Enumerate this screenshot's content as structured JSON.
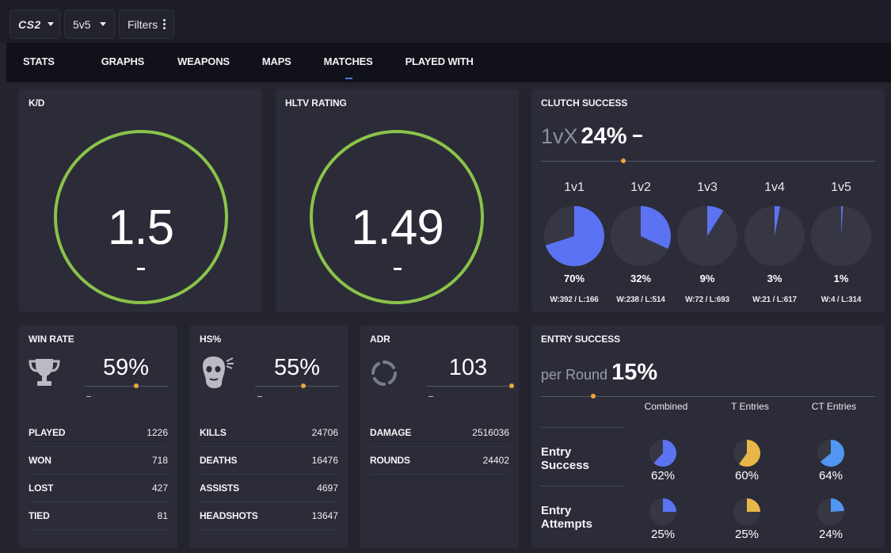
{
  "topbar": {
    "game_label": "CS2",
    "mode_label": "5v5",
    "filters_label": "Filters"
  },
  "tabs": [
    {
      "label": "STATS"
    },
    {
      "label": "GRAPHS"
    },
    {
      "label": "WEAPONS"
    },
    {
      "label": "MAPS"
    },
    {
      "label": "MATCHES",
      "active": true
    },
    {
      "label": "PLAYED WITH"
    }
  ],
  "kd": {
    "title": "K/D",
    "value": "1.5"
  },
  "hltv": {
    "title": "HLTV RATING",
    "value": "1.49"
  },
  "ring_color": "#8bc34a",
  "accent_blue": "#5b73f2",
  "accent_orange": "#e9a83d",
  "accent_lightblue": "#4f8ff0",
  "clutch": {
    "title": "CLUTCH SUCCESS",
    "prefix": "1vX",
    "value": "24%",
    "items": [
      {
        "label": "1v1",
        "pct": "70%",
        "fraction": 0.7,
        "wl": "W:392 / L:166"
      },
      {
        "label": "1v2",
        "pct": "32%",
        "fraction": 0.32,
        "wl": "W:238 / L:514"
      },
      {
        "label": "1v3",
        "pct": "9%",
        "fraction": 0.09,
        "wl": "W:72 / L:693"
      },
      {
        "label": "1v4",
        "pct": "3%",
        "fraction": 0.03,
        "wl": "W:21 / L:617"
      },
      {
        "label": "1v5",
        "pct": "1%",
        "fraction": 0.01,
        "wl": "W:4 / L:314"
      }
    ]
  },
  "winrate": {
    "title": "WIN RATE",
    "icon": "trophy-icon",
    "value": "59%",
    "rows": [
      {
        "label": "PLAYED",
        "value": "1226"
      },
      {
        "label": "WON",
        "value": "718"
      },
      {
        "label": "LOST",
        "value": "427"
      },
      {
        "label": "TIED",
        "value": "81"
      }
    ]
  },
  "hs": {
    "title": "HS%",
    "icon": "headshot-icon",
    "value": "55%",
    "rows": [
      {
        "label": "KILLS",
        "value": "24706"
      },
      {
        "label": "DEATHS",
        "value": "16476"
      },
      {
        "label": "ASSISTS",
        "value": "4697"
      },
      {
        "label": "HEADSHOTS",
        "value": "13647"
      }
    ]
  },
  "adr": {
    "title": "ADR",
    "icon": "loading-ring-icon",
    "value": "103",
    "rows": [
      {
        "label": "DAMAGE",
        "value": "2516036"
      },
      {
        "label": "ROUNDS",
        "value": "24402"
      }
    ]
  },
  "entry": {
    "title": "ENTRY SUCCESS",
    "prefix": "per Round",
    "value": "15%",
    "columns": [
      "Combined",
      "T Entries",
      "CT Entries"
    ],
    "rows": [
      {
        "label_line1": "Entry",
        "label_line2": "Success",
        "cells": [
          {
            "pct": "62%",
            "fraction": 0.62,
            "color": "#5b73f2"
          },
          {
            "pct": "60%",
            "fraction": 0.6,
            "color": "#e9b64a"
          },
          {
            "pct": "64%",
            "fraction": 0.64,
            "color": "#5196f2"
          }
        ]
      },
      {
        "label_line1": "Entry",
        "label_line2": "Attempts",
        "cells": [
          {
            "pct": "25%",
            "fraction": 0.25,
            "color": "#5b73f2"
          },
          {
            "pct": "25%",
            "fraction": 0.25,
            "color": "#e9b64a"
          },
          {
            "pct": "24%",
            "fraction": 0.24,
            "color": "#5196f2"
          }
        ]
      }
    ]
  }
}
